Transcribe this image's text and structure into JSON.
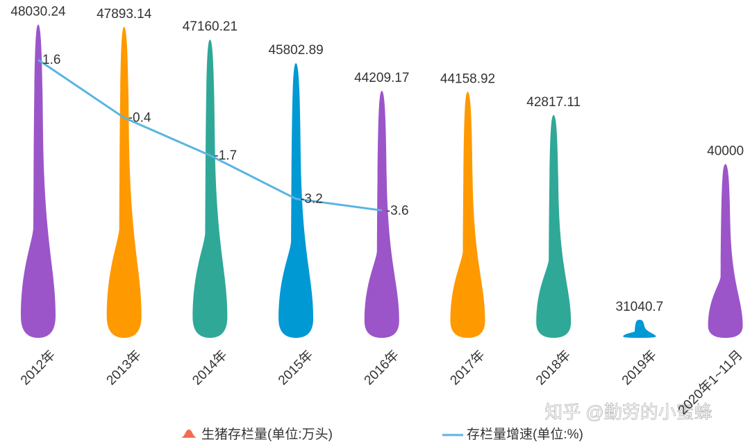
{
  "chart_data": {
    "type": "pictorial-bar-line",
    "categories": [
      "2012年",
      "2013年",
      "2014年",
      "2015年",
      "2016年",
      "2017年",
      "2018年",
      "2019年",
      "2020年1~11月"
    ],
    "series": [
      {
        "name": "生猪存栏量(单位:万头)",
        "color": "#f26b50",
        "colors": [
          "#9b55c9",
          "#ff9900",
          "#2fa898",
          "#0099d4",
          "#9b55c9",
          "#ff9900",
          "#2fa898",
          "#0099d4",
          "#9b55c9"
        ],
        "values": [
          48030.24,
          47893.14,
          47160.21,
          45802.89,
          44209.17,
          44158.92,
          42817.11,
          31040.7,
          40000
        ]
      },
      {
        "name": "存栏量增速(单位:%)",
        "color": "#5ab4e0",
        "axis": "y2",
        "values": [
          1.6,
          -0.4,
          -1.7,
          -3.2,
          -3.6,
          null,
          null,
          null,
          null
        ]
      }
    ],
    "ylim": [
      30000,
      50000
    ],
    "y2lim": [
      -8,
      4
    ],
    "watermark": "知乎 @勤劳的小蜜蜂"
  }
}
